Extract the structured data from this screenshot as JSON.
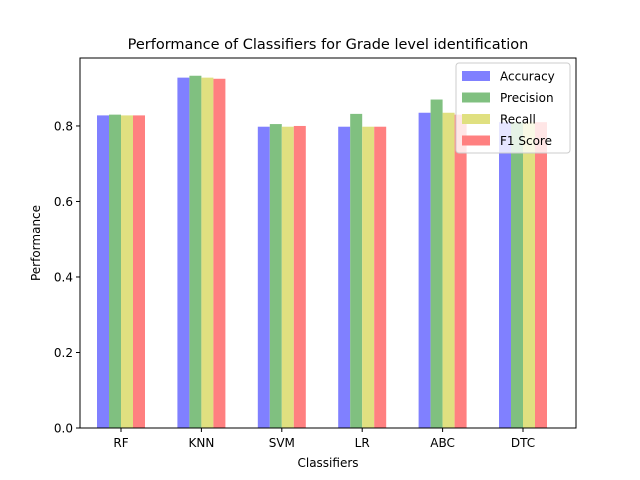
{
  "chart_data": {
    "type": "bar",
    "title": "Performance of Classifiers for Grade level identification",
    "xlabel": "Classifiers",
    "ylabel": "Performance",
    "categories": [
      "RF",
      "KNN",
      "SVM",
      "LR",
      "ABC",
      "DTC"
    ],
    "ylim": [
      0,
      0.98
    ],
    "yticks": [
      "0.0",
      "0.2",
      "0.4",
      "0.6",
      "0.8"
    ],
    "grid": false,
    "legend_position": "top-right",
    "series": [
      {
        "name": "Accuracy",
        "color": "#8080ff",
        "values": [
          0.828,
          0.928,
          0.798,
          0.798,
          0.835,
          0.81
        ]
      },
      {
        "name": "Precision",
        "color": "#80c080",
        "values": [
          0.83,
          0.933,
          0.805,
          0.832,
          0.87,
          0.81
        ]
      },
      {
        "name": "Recall",
        "color": "#e0e080",
        "values": [
          0.828,
          0.928,
          0.798,
          0.798,
          0.835,
          0.81
        ]
      },
      {
        "name": "F1 Score",
        "color": "#ff8080",
        "values": [
          0.828,
          0.925,
          0.8,
          0.798,
          0.83,
          0.81
        ]
      }
    ]
  }
}
